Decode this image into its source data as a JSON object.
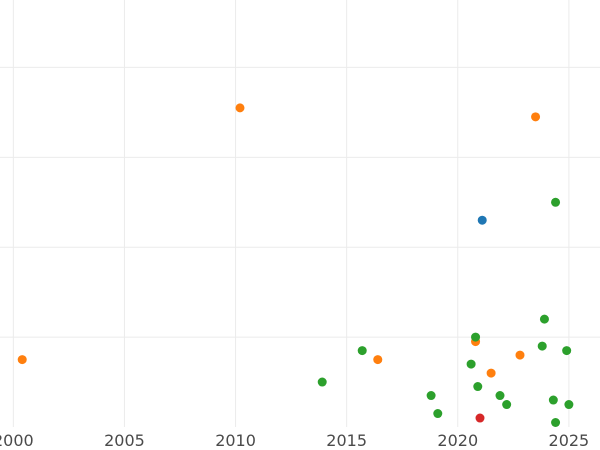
{
  "chart_data": {
    "type": "scatter",
    "title": "",
    "xlabel": "",
    "ylabel": "",
    "xlim": [
      1999.4,
      2026.4
    ],
    "ylim": [
      0,
      9.5
    ],
    "grid": true,
    "x_ticks": [
      2000,
      2005,
      2010,
      2015,
      2020,
      2025
    ],
    "x_tick_labels": [
      "2000",
      "2005",
      "2010",
      "2015",
      "2020",
      "2025"
    ],
    "y_grid": [
      2,
      4,
      6,
      8
    ],
    "x_grid": [
      2000,
      2005,
      2010,
      2015,
      2020,
      2025
    ],
    "series": [
      {
        "color": "#1f77b4",
        "points": [
          {
            "x": 2021.1,
            "y": 4.6
          }
        ]
      },
      {
        "color": "#ff7f0e",
        "points": [
          {
            "x": 2000.4,
            "y": 1.5
          },
          {
            "x": 2010.2,
            "y": 7.1
          },
          {
            "x": 2016.4,
            "y": 1.5
          },
          {
            "x": 2020.8,
            "y": 1.9
          },
          {
            "x": 2021.5,
            "y": 1.2
          },
          {
            "x": 2022.8,
            "y": 1.6
          },
          {
            "x": 2023.5,
            "y": 6.9
          }
        ]
      },
      {
        "color": "#2ca02c",
        "points": [
          {
            "x": 2013.9,
            "y": 1.0
          },
          {
            "x": 2015.7,
            "y": 1.7
          },
          {
            "x": 2018.8,
            "y": 0.7
          },
          {
            "x": 2019.1,
            "y": 0.3
          },
          {
            "x": 2020.6,
            "y": 1.4
          },
          {
            "x": 2020.8,
            "y": 2.0
          },
          {
            "x": 2020.9,
            "y": 0.9
          },
          {
            "x": 2021.9,
            "y": 0.7
          },
          {
            "x": 2022.2,
            "y": 0.5
          },
          {
            "x": 2023.8,
            "y": 1.8
          },
          {
            "x": 2023.9,
            "y": 2.4
          },
          {
            "x": 2024.3,
            "y": 0.6
          },
          {
            "x": 2024.4,
            "y": 0.1
          },
          {
            "x": 2024.4,
            "y": 5.0
          },
          {
            "x": 2024.9,
            "y": 1.7
          },
          {
            "x": 2025.0,
            "y": 0.5
          }
        ]
      },
      {
        "color": "#d62728",
        "points": [
          {
            "x": 2021.0,
            "y": 0.2
          }
        ]
      }
    ]
  }
}
